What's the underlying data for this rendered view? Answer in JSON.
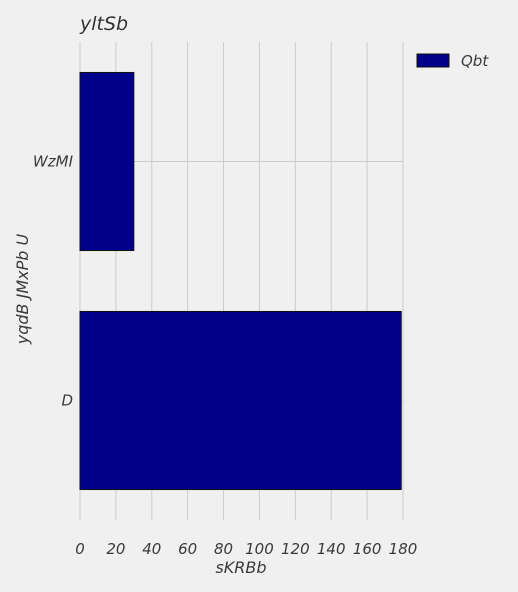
{
  "chart_data": {
    "type": "bar",
    "orientation": "horizontal",
    "title": "yltSb",
    "xlabel": "sKRBb",
    "ylabel": "yqdB JMxPb U",
    "categories": [
      "WzMI",
      "D"
    ],
    "series": [
      {
        "name": "Qbt",
        "values": [
          30,
          179
        ],
        "color": "#00008b"
      }
    ],
    "xlim": [
      0,
      180
    ],
    "x_ticks": [
      0,
      20,
      40,
      60,
      80,
      100,
      120,
      140,
      160,
      180
    ],
    "grid": true,
    "legend_position": "top-right"
  },
  "colors": {
    "background": "#f0f0f0",
    "grid": "#cbcbcb",
    "bar_edge": "#111111"
  }
}
